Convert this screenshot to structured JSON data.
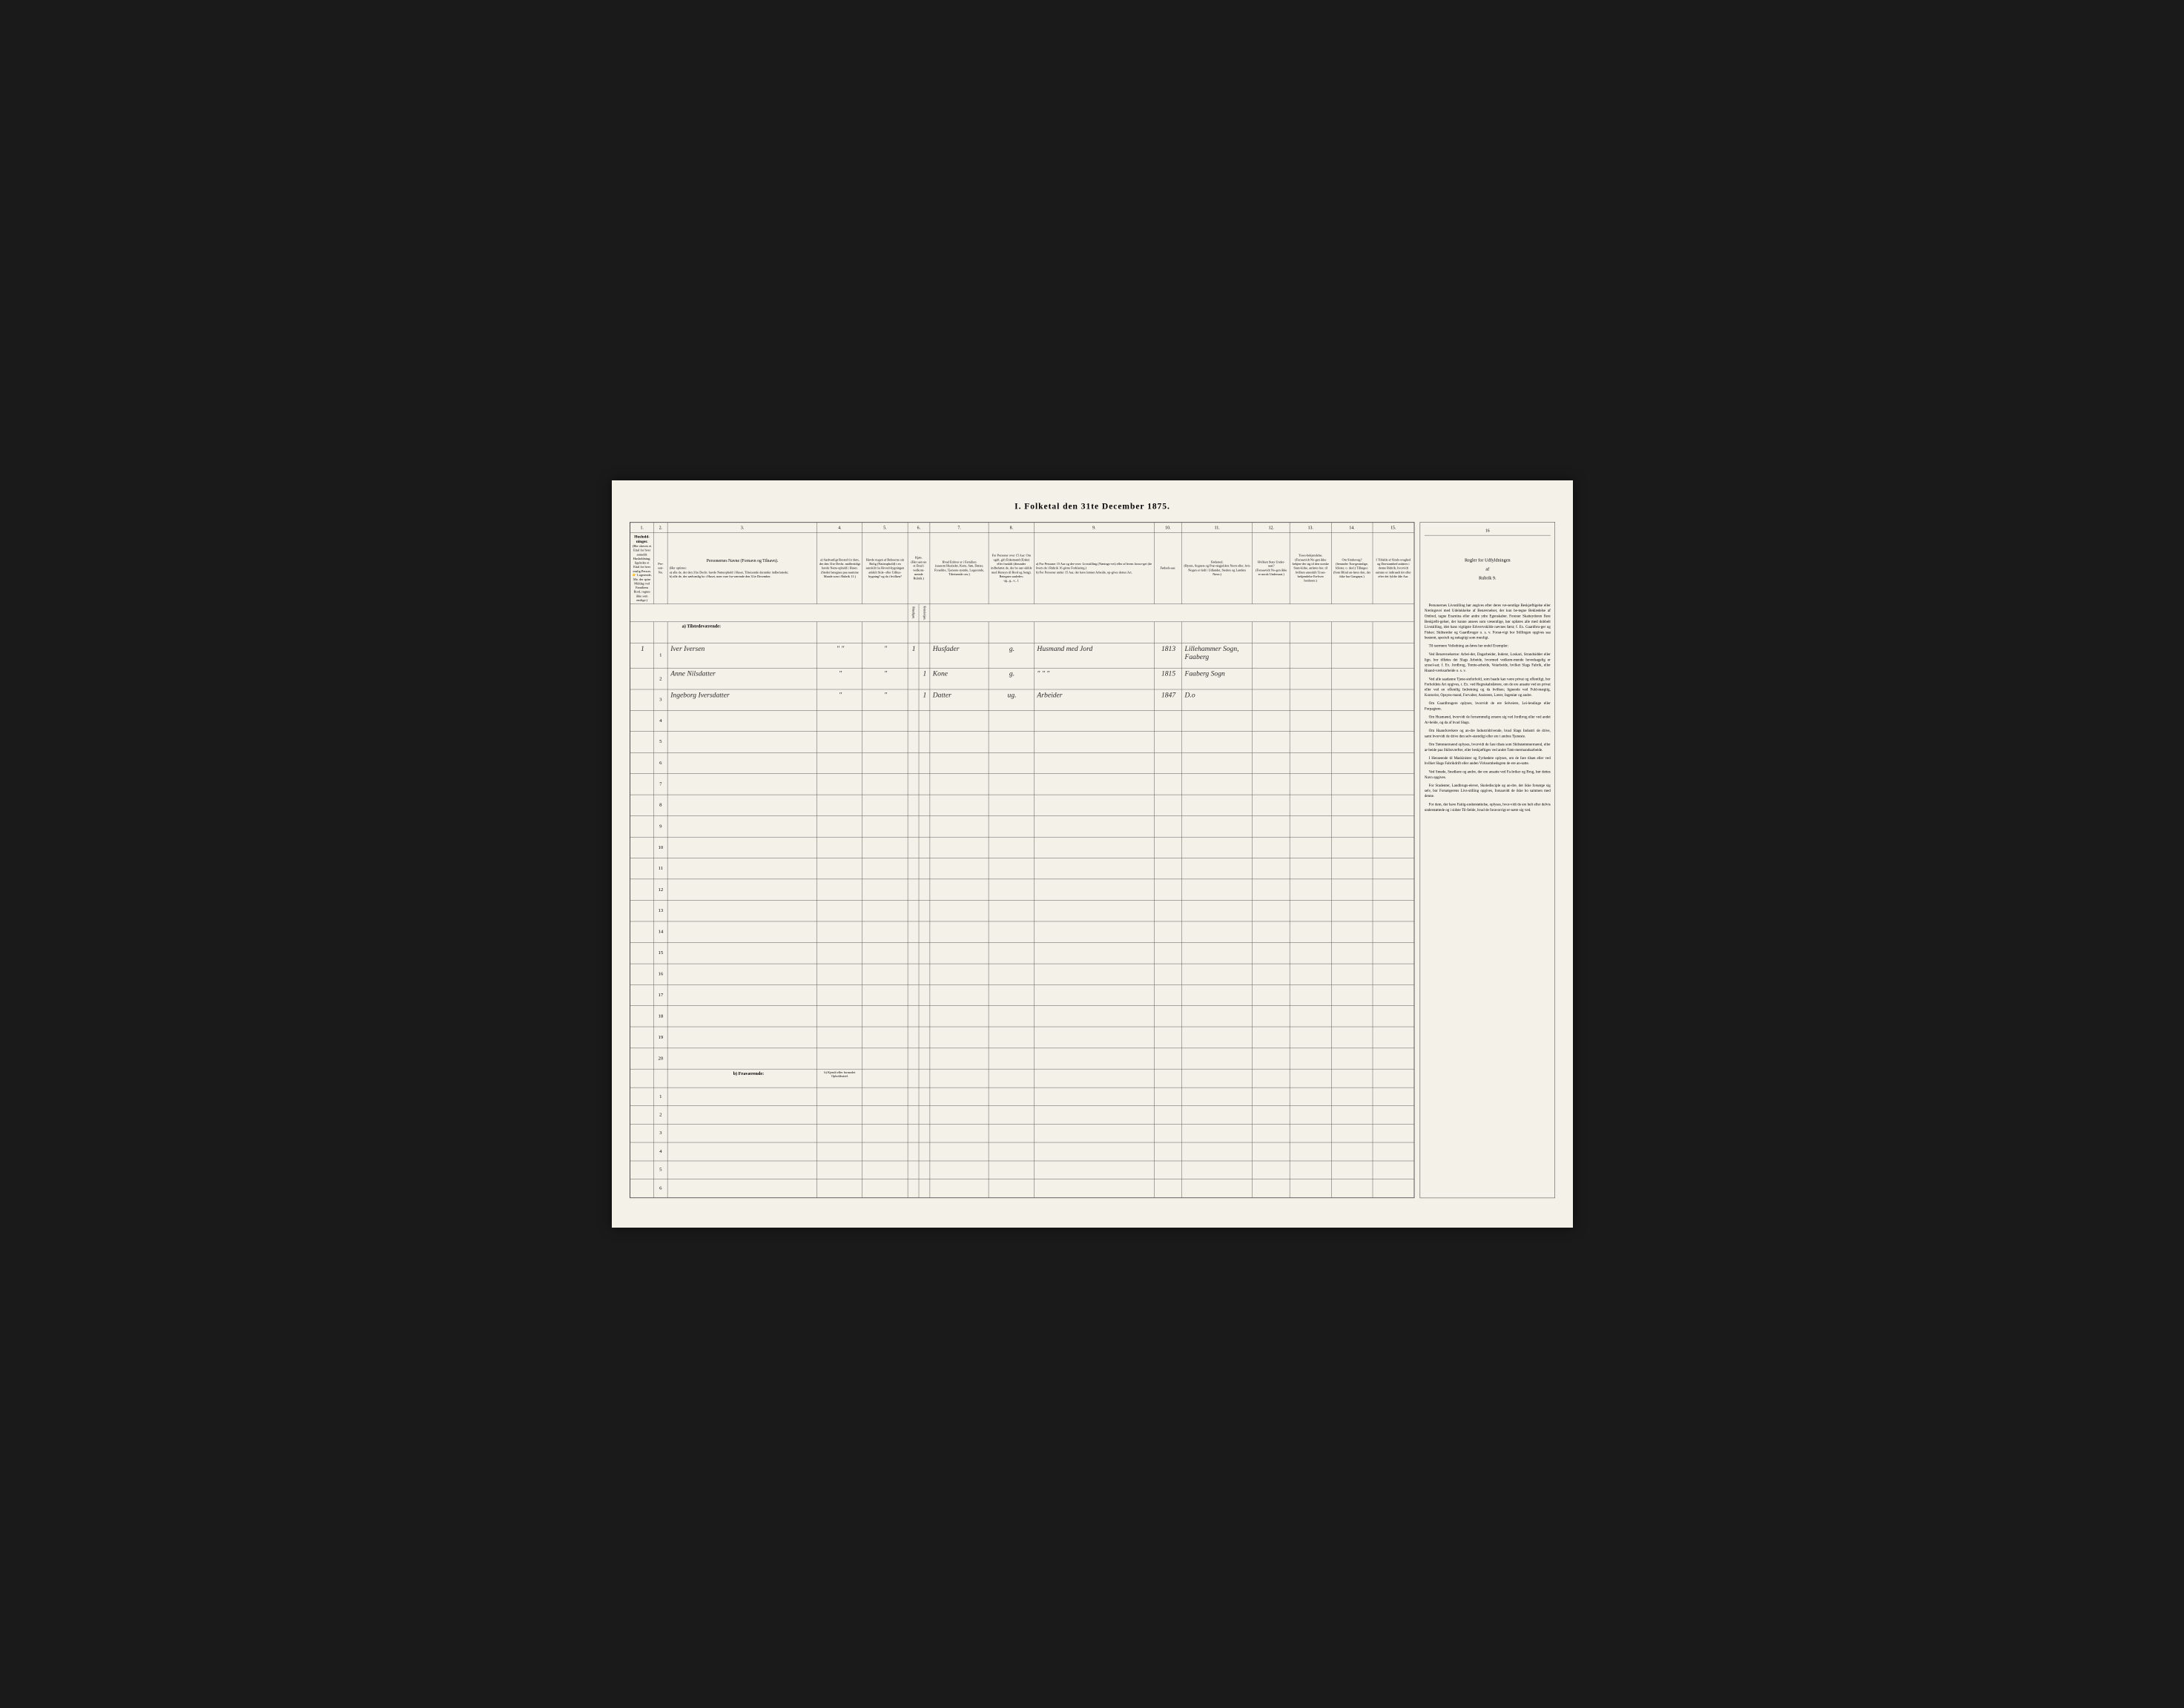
{
  "title": "I. Folketal den 31te December 1875.",
  "columns": {
    "nums": [
      "1.",
      "2.",
      "3.",
      "4.",
      "5.",
      "6.",
      "7.",
      "8.",
      "9.",
      "10.",
      "11.",
      "12.",
      "13.",
      "14.",
      "15.",
      "16"
    ],
    "h1": "Hushold-ninger.",
    "h1_sub": "(Her skrives et Ettal for hver anmeldt Husholdning; ligeledes et Ettal for hver enslig Person. 👉 Logerende, Mo. der spise Middag ved Familiens Bord, regnes ikke som enslige.)",
    "h2": "Per-son-No.",
    "h3": "Personernes Navne (Fornavn og Tilnavn).",
    "h3_sub": "(Her opføres:\na) alle de, der den 31te Decbr. havde Natteophold i Huset, Tilreisende derunder indbefattede;\nb) alle de, der sædvanlig bo i Huset, men vare fra-værende den 31te December.",
    "h4": "a) Sædvanligt Bosted for dem, der den 31te Decbr. midlertidigt havde Natte-ophold i Huset.\n(Stedet betegnes paa saamme Maade som i Rubrik 11.)",
    "h5": "Havde nogen af Beboerne sin Bolig (Natteophold) i en særskilt fra Hoved-bygningen adskilt Side- eller Udhus-bygning? og da i hvilken?",
    "h6": "Kjøn.\n(Her sæt-tes et Ettal i vedkom-mende Rubrik.)",
    "h6a": "Mandkjøn.",
    "h6b": "Kvindekjøn.",
    "h7": "Hvad Enhver er i Familien\n(saasom Husfader, Kone, Søn, Datter, Forældre, Tjeneste-tyende, Logerende, Tilreisende osv.)",
    "h8": "For Personer over 15 Aar: Om ugift, gift Enkemand (Enke) eller fraskilt (derunder indbefattet de, der bo sær-skilde med Hensyn til Bord og Seng). Betegnes saaledes:\nug., g., e., f.",
    "h9": "a) For Personer 15 Aar og der-over: Livsstilling (Nærings-vei) eller af hvem forsor-get (de hvem de i Rubrik 16 givne Forklaring.)\nb) For Personer under 15 Aar, der have lønnet Arbeide, op-gives dettes Art.",
    "h10": "Fødsels-aar.",
    "h11": "Fødested.\n(Byens, Sognets og Præ-stegjeldets Navn eller, hvis Nogen er født i Udlandet, Stedets og Landets Navn.)",
    "h12": "Hvilken Stats Under-saat?\n(Forsaavidt No-gen ikke er norsk Undersaat.)",
    "h13": "Troes-bekjendelse.\n(Forsaavidt No-gen ikke bekjen-der sig til den norske Stats-kirke, anføres her, til hvilken anerskilt Troes-bekjendelse En-hver henhorer.)",
    "h14": "Om Sindssvag?\n(herunder Tun-gesindige, Idioter, o. desl.) Tillæges: (Som Blind an-føres den, der ikke har Gangnyn.)",
    "h15": "I Tilfalde af Sinds-svaghed og Døvstumhed anføres i denne Rubrik, hvorvidt samme er indtraadt før eller efter det fyldte 4de Aar.",
    "h16_title": "Regler for Udfyldningen",
    "h16_af": "af",
    "h16_rubrik": "Rubrik 9."
  },
  "section_a": "a) Tilstedeværende:",
  "section_b": "b) Fraværende:",
  "section_b_col4": "b) Kjendt eller formodet Opholdssted.",
  "rows": [
    {
      "num": "1",
      "h1": "1",
      "name": "Iver Iversen",
      "col4": "\" \"",
      "col5": "\"",
      "kj_m": "1",
      "kj_k": "",
      "col7": "Husfader",
      "col8": "g.",
      "col9": "Husmand med Jord",
      "col10": "1813",
      "col11": "Lillehammer Sogn, Faaberg"
    },
    {
      "num": "2",
      "h1": "",
      "name": "Anne Nilsdatter",
      "col4": "\"",
      "col5": "\"",
      "kj_m": "",
      "kj_k": "1",
      "col7": "Kone",
      "col8": "g.",
      "col9": "\" \" \"",
      "col10": "1815",
      "col11": "Faaberg Sogn"
    },
    {
      "num": "3",
      "h1": "",
      "name": "Ingeborg Iversdatter",
      "col4": "\"",
      "col5": "\"",
      "kj_m": "",
      "kj_k": "1",
      "col7": "Datter",
      "col8": "ug.",
      "col9": "Arbeider",
      "col10": "1847",
      "col11": "D.o"
    }
  ],
  "empty_rows": [
    "4",
    "5",
    "6",
    "7",
    "8",
    "9",
    "10",
    "11",
    "12",
    "13",
    "14",
    "15",
    "16",
    "17",
    "18",
    "19",
    "20"
  ],
  "absent_rows": [
    "1",
    "2",
    "3",
    "4",
    "5",
    "6"
  ],
  "rules": {
    "p1": "Personernes Livsstilling bør angives efter deres væ-sentlige Beskjæftigelse eller Næringsvei med Udelukkelse af Benævnelser, der kun be-tegne Beklædelse af Ombud, tagne Examina eller andre ydre Egenskaber. Forener Skatteyderen flere Beskjæfti-gelser, der kunne ansees som væsentlige, bør opføres alle med dobbelt Livsstilling, idet hans vigtigste Erhvervskilde nævnes først; f. Ex. Gaardbru-ger og Fisker; Skibsreder og Gaardbruger o. s. v. Forsø-vigt bor Stillingen opgives saa bestemt, specielt og nøiagtigt som muuligt.",
    "p2": "Til nærmere Veiledning an-føres her endel Exempler:",
    "p3": "Ved Benævnelserne: Arbei-der, Dagarbeider, Inderst, Loskari, Strandsidder eller lign. bor tilføies det Slags Arbeide, hvormed vedkom-mende hovedsagelig er syssel-sat; f. Ex. Jordbrug, Tomte-arbeide, Veiarbeide, hvilket Slags Fabrik, eller Haand-værksarbeide o. s. v.",
    "p4": "Ved alle saadanne Tjene-steforhold, som baade kan være privat og offentligt, bor Forholdets Art opgives, t. Ex. ved Regnskabsførere, om de ere ansatte ved en privat eller ved en offentlig Indretning og da hvilken; lignende ved Fuld-mægtig, Kontorist, Opsyns-mand, Forvalter, Assistent, Lærer, Ingeniør og andre.",
    "p5": "Om Gaardbrugere oplyses, hvorvidt de ere Selveiere, Lei-lendinge eller Forpagtere.",
    "p6": "Om Husmænd, hvorvidt de fornemmelig ernære sig ved Jordbrug eller ved andet Ar-beide, og da af hvad Slags.",
    "p7": "Om Haandværkere og an-dre Industridrivende, hvad Slags Industri de drive, samt hvorvidt de drive den selv-stændigt eller ere i andres Tjeneste.",
    "p8": "Om Tømmermænd oplyses, hvorvidt de fare tilsøs som Skibstømmermænd, eller ar-beide paa Skibsværfter, eller beskjæftiges ved andet Tøm-mermandsarbeide.",
    "p9": "I Henseende til Maskinister og Fyrbødere oplyses, om de fare tilsøs eller ved hvilket Slags Fabrikdrift eller anden Virksomhedsgren de ere an-satte.",
    "p10": "Ved Smede, Snedkere og andre, der ere ansatte ved Fa-briker og Brug, bør dettes Navn opgives.",
    "p11": "For Studenter, Landbrugs-elever, Skoledisciple og an-dre, der ikke forsørge sig selv, bor Forsørgerens Livs-stilling opgives, forsaavidt de ikke bo sammen med denne.",
    "p12": "For dem, der have Fattig-understøttelse, oplyses, hvor-vidt de ere helt eller delvis understøttede og i sidste Til-fælde, hvad de foravorrigt er-nære sig ved."
  },
  "widths": {
    "c1": 60,
    "c2": 35,
    "c3": 380,
    "c4": 115,
    "c5": 115,
    "c6": 55,
    "c7": 150,
    "c8": 115,
    "c9": 305,
    "c10": 70,
    "c11": 180,
    "c12": 95,
    "c13": 105,
    "c14": 105,
    "c15": 105
  }
}
